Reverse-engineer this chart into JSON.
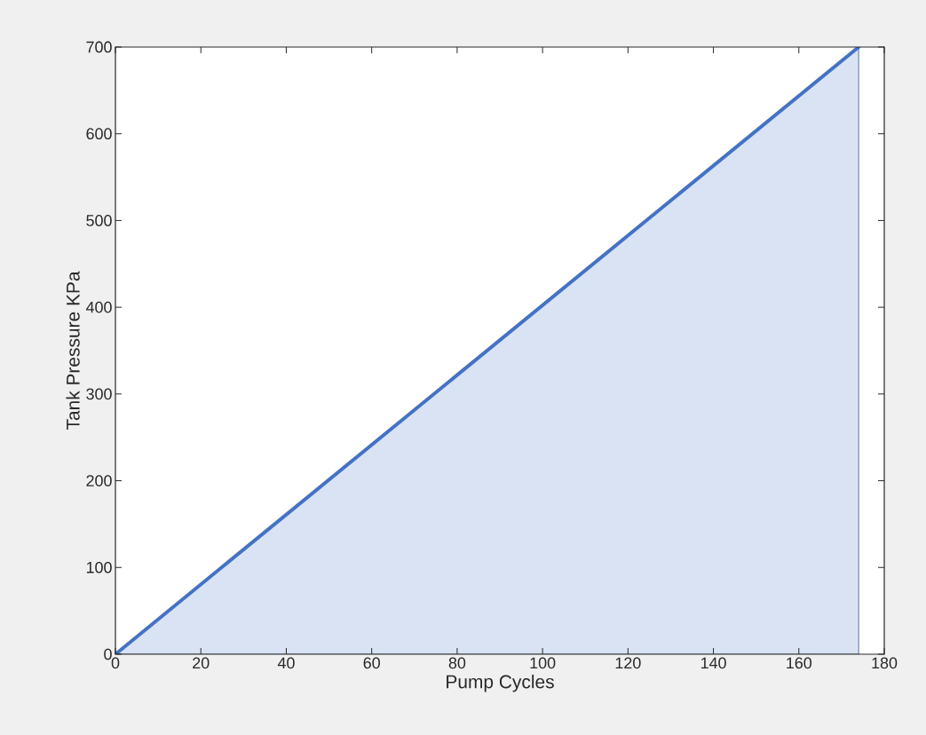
{
  "chart_data": {
    "type": "area",
    "xlabel": "Pump Cycles",
    "ylabel": "Tank Pressure KPa",
    "x": [
      0,
      174
    ],
    "series": [
      {
        "color": "#4472c4",
        "values": [
          0,
          700
        ]
      }
    ],
    "xlim": [
      0,
      180
    ],
    "ylim": [
      0,
      700
    ],
    "xticks": [
      0,
      20,
      40,
      60,
      80,
      100,
      120,
      140,
      160,
      180
    ],
    "yticks": [
      0,
      100,
      200,
      300,
      400,
      500,
      600,
      700
    ]
  }
}
